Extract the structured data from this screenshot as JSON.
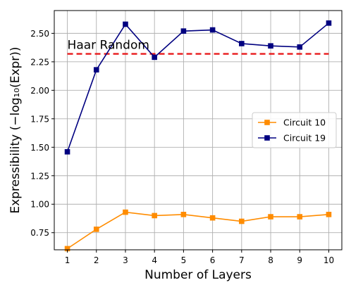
{
  "chart_data": {
    "type": "line",
    "xlabel": "Number of Layers",
    "ylabel": "Expressibility (−log₁₀(Expr))",
    "x": [
      1,
      2,
      3,
      4,
      5,
      6,
      7,
      8,
      9,
      10
    ],
    "xlim": [
      0.55,
      10.45
    ],
    "ylim": [
      0.6,
      2.7
    ],
    "xticks": [
      1,
      2,
      3,
      4,
      5,
      6,
      7,
      8,
      9,
      10
    ],
    "yticks": [
      0.75,
      1.0,
      1.25,
      1.5,
      1.75,
      2.0,
      2.25,
      2.5
    ],
    "ytick_labels": [
      "0.75",
      "1.00",
      "1.25",
      "1.50",
      "1.75",
      "2.00",
      "2.25",
      "2.50"
    ],
    "grid": true,
    "legend_position": "right",
    "series": [
      {
        "name": "Circuit 10",
        "color": "#ff8c00",
        "marker": "square",
        "values": [
          0.61,
          0.78,
          0.93,
          0.9,
          0.91,
          0.88,
          0.85,
          0.89,
          0.89,
          0.91
        ]
      },
      {
        "name": "Circuit 19",
        "color": "#000080",
        "marker": "square",
        "values": [
          1.46,
          2.18,
          2.58,
          2.29,
          2.52,
          2.53,
          2.41,
          2.39,
          2.38,
          2.59
        ]
      }
    ],
    "reference_line": {
      "label": "Haar Random",
      "value": 2.32,
      "color": "#e8191b",
      "style": "dashed"
    }
  }
}
